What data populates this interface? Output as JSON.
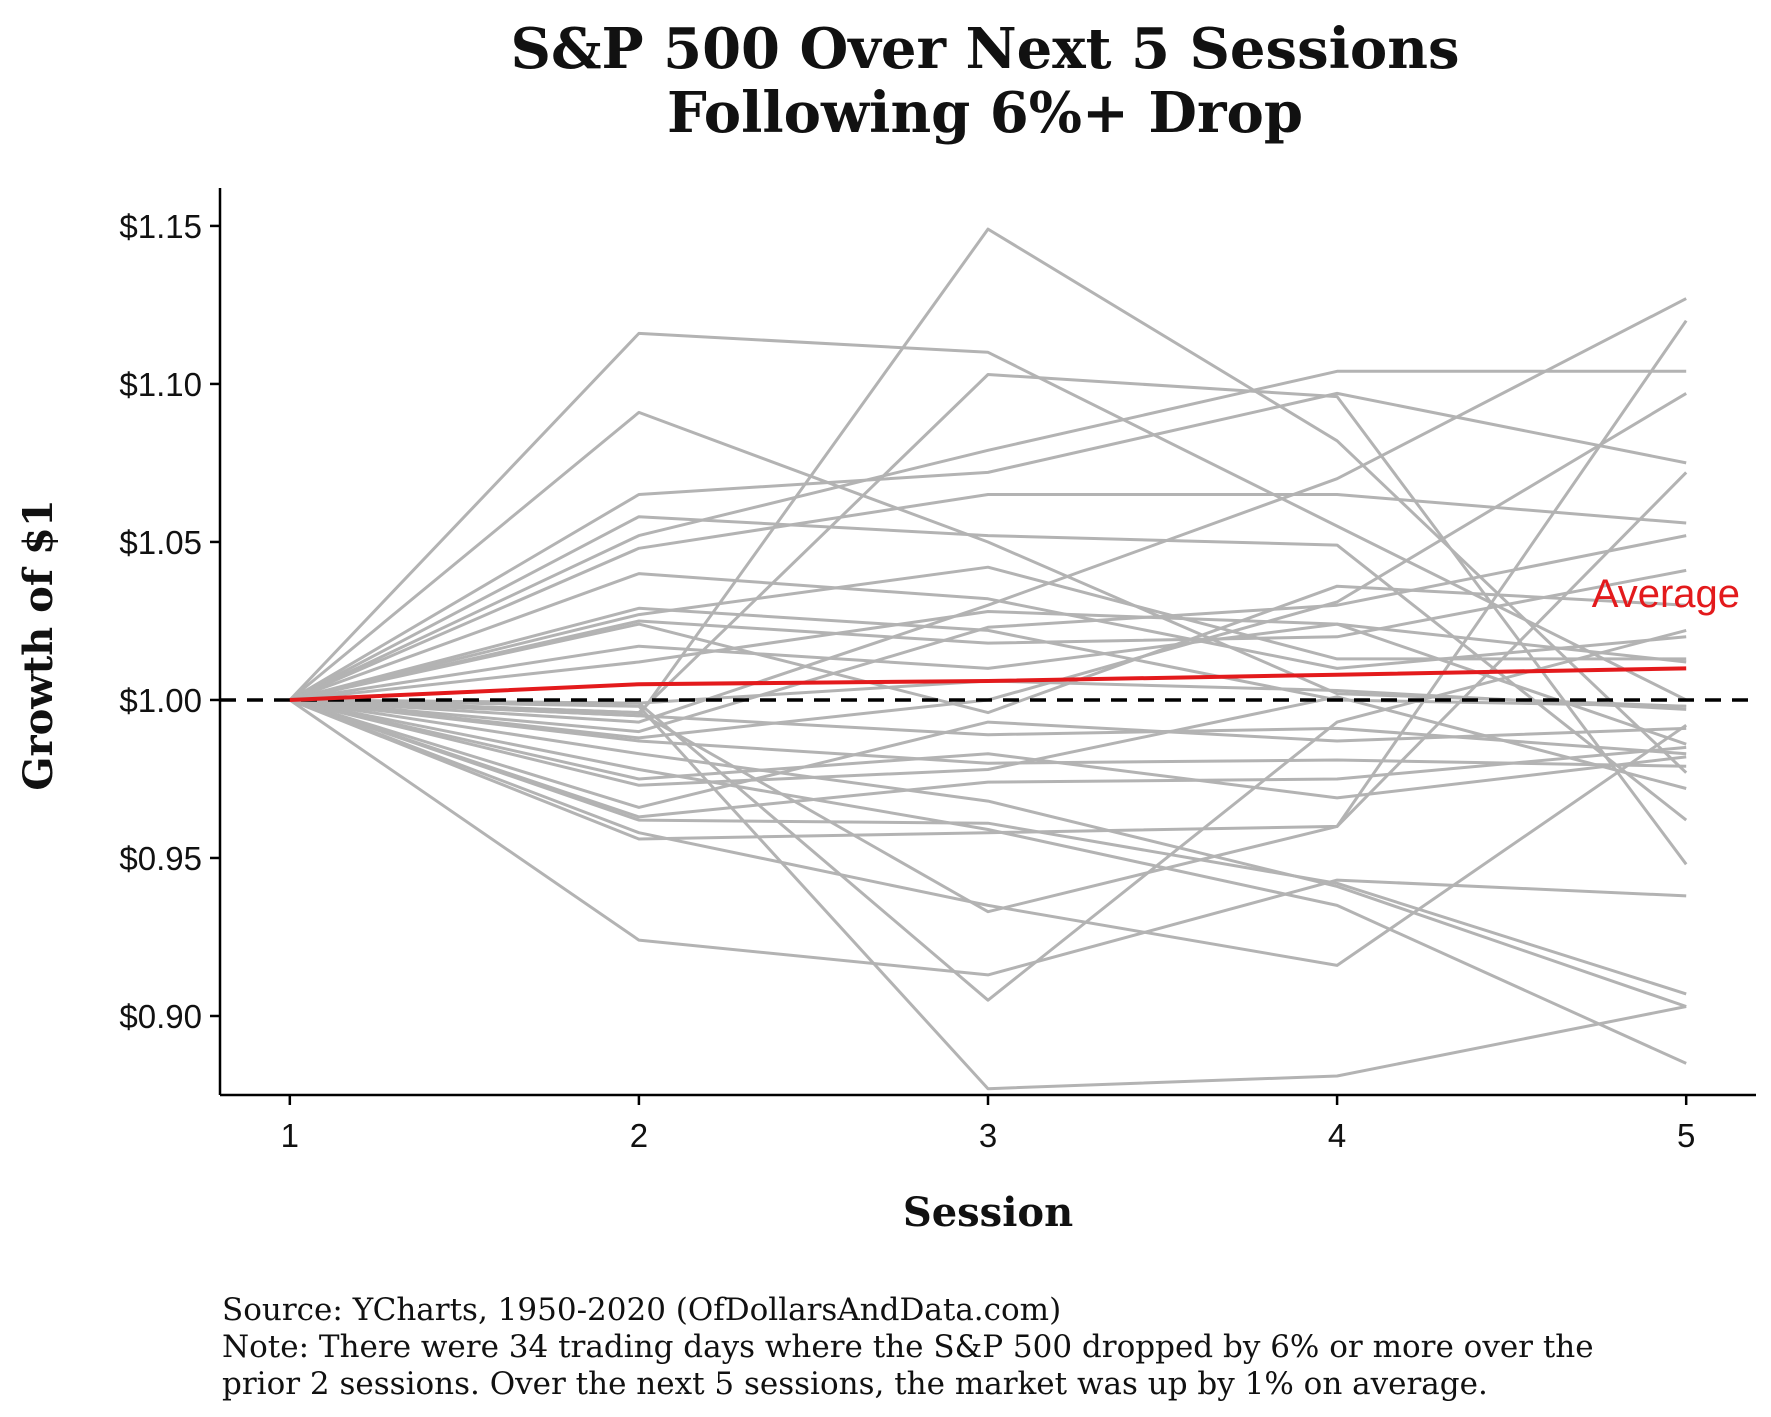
{
  "chart_data": {
    "type": "line",
    "title": [
      "S&P 500 Over Next 5 Sessions",
      "Following 6%+ Drop"
    ],
    "xlabel": "Session",
    "ylabel": "Growth of $1",
    "x": [
      1,
      2,
      3,
      4,
      5
    ],
    "xlim": [
      0.8,
      5.2
    ],
    "ylim": [
      0.875,
      1.162
    ],
    "yticks": [
      0.9,
      0.95,
      1.0,
      1.05,
      1.1,
      1.15
    ],
    "ytick_labels": [
      "$0.90",
      "$0.95",
      "$1.00",
      "$1.05",
      "$1.10",
      "$1.15"
    ],
    "xtick_labels": [
      "1",
      "2",
      "3",
      "4",
      "5"
    ],
    "grid": false,
    "reference_line": {
      "y": 1.0,
      "style": "dashed",
      "color": "#000000"
    },
    "annotation": {
      "text": "Average",
      "x": 5,
      "y": 1.029,
      "color": "#e31a1c"
    },
    "colors": {
      "paths": "#b3b3b3",
      "average": "#e31a1c",
      "reference": "#000000"
    },
    "series": [
      {
        "values": [
          1,
          1.116,
          1.11,
          1.055,
          1.0
        ]
      },
      {
        "values": [
          1,
          1.091,
          1.05,
          1.002,
          0.998
        ]
      },
      {
        "values": [
          1,
          1.065,
          1.072,
          1.097,
          1.075
        ]
      },
      {
        "values": [
          1,
          1.058,
          1.052,
          1.049,
          0.962
        ]
      },
      {
        "values": [
          1,
          1.052,
          1.079,
          1.104,
          1.104
        ]
      },
      {
        "values": [
          1,
          1.048,
          1.065,
          1.065,
          1.056
        ]
      },
      {
        "values": [
          1,
          1.04,
          1.032,
          1.01,
          1.02
        ]
      },
      {
        "values": [
          1,
          1.029,
          1.022,
          1.0,
          0.998
        ]
      },
      {
        "values": [
          1,
          1.027,
          1.042,
          1.013,
          1.013
        ]
      },
      {
        "values": [
          1,
          1.025,
          1.018,
          1.02,
          1.041
        ]
      },
      {
        "values": [
          1,
          1.024,
          0.996,
          1.036,
          1.03
        ]
      },
      {
        "values": [
          1,
          1.017,
          1.01,
          1.024,
          1.012
        ]
      },
      {
        "values": [
          1,
          1.012,
          1.028,
          1.024,
          0.986
        ]
      },
      {
        "values": [
          1,
          0.996,
          1.103,
          1.096,
          0.948
        ]
      },
      {
        "values": [
          1,
          0.995,
          1.149,
          1.082,
          0.977
        ]
      },
      {
        "values": [
          1,
          0.993,
          1.03,
          1.07,
          1.127
        ]
      },
      {
        "values": [
          1,
          0.99,
          1.023,
          1.03,
          1.052
        ]
      },
      {
        "values": [
          1,
          0.988,
          1.0,
          1.031,
          1.097
        ]
      },
      {
        "values": [
          1,
          0.983,
          0.968,
          0.941,
          0.903
        ]
      },
      {
        "values": [
          1,
          0.978,
          0.959,
          0.935,
          0.885
        ]
      },
      {
        "values": [
          1,
          0.975,
          0.983,
          0.969,
          0.982
        ]
      },
      {
        "values": [
          1,
          0.973,
          0.978,
          1.001,
          0.972
        ]
      },
      {
        "values": [
          1,
          0.966,
          0.993,
          0.987,
          0.991
        ]
      },
      {
        "values": [
          1,
          0.963,
          0.974,
          0.975,
          0.985
        ]
      },
      {
        "values": [
          1,
          0.962,
          0.961,
          0.942,
          0.907
        ]
      },
      {
        "values": [
          1,
          0.958,
          0.935,
          0.916,
          0.992
        ]
      },
      {
        "values": [
          1,
          0.956,
          0.958,
          0.96,
          1.12
        ]
      },
      {
        "values": [
          1,
          0.924,
          0.913,
          0.943,
          0.938
        ]
      },
      {
        "values": [
          1,
          0.998,
          0.877,
          0.881,
          0.903
        ]
      },
      {
        "values": [
          1,
          0.999,
          1.006,
          1.003,
          0.997
        ]
      },
      {
        "values": [
          1,
          0.995,
          0.989,
          0.991,
          0.983
        ]
      },
      {
        "values": [
          1,
          0.987,
          0.98,
          0.981,
          0.979
        ]
      },
      {
        "values": [
          1,
          0.996,
          0.933,
          0.96,
          1.072
        ]
      },
      {
        "values": [
          1,
          0.999,
          0.905,
          0.993,
          1.022
        ]
      },
      {
        "name": "Average",
        "values": [
          1,
          1.005,
          1.006,
          1.008,
          1.01
        ]
      }
    ]
  },
  "footer": {
    "source": "Source:  YCharts, 1950-2020 (OfDollarsAndData.com)",
    "note_line1": "Note: There were 34 trading days where the S&P 500 dropped by 6% or more over the",
    "note_line2": "prior 2 sessions. Over the next 5 sessions, the market was up by 1% on average."
  }
}
